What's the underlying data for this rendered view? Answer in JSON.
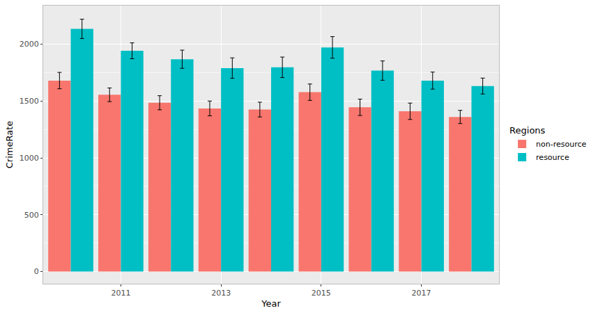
{
  "chart_data": {
    "type": "bar",
    "x_label": "Year",
    "y_label": "CrimeRate",
    "legend_title": "Regions",
    "categories": [
      null,
      "2011",
      null,
      "2013",
      null,
      "2015",
      null,
      "2017",
      null
    ],
    "series": [
      {
        "name": "non-resource",
        "color": "#F8766D",
        "values": [
          1680,
          1555,
          1485,
          1435,
          1425,
          1578,
          1445,
          1410,
          1360
        ],
        "errors": [
          72,
          60,
          62,
          65,
          65,
          72,
          72,
          72,
          58
        ]
      },
      {
        "name": "resource",
        "color": "#00BFC4",
        "values": [
          2135,
          1942,
          1868,
          1790,
          1797,
          1972,
          1768,
          1680,
          1632
        ],
        "errors": [
          85,
          70,
          80,
          90,
          90,
          95,
          85,
          75,
          70
        ]
      }
    ],
    "ylim": [
      -107,
      2340
    ],
    "yticks": [
      0,
      500,
      1000,
      1500,
      2000
    ],
    "grid": true,
    "legend": "right"
  }
}
